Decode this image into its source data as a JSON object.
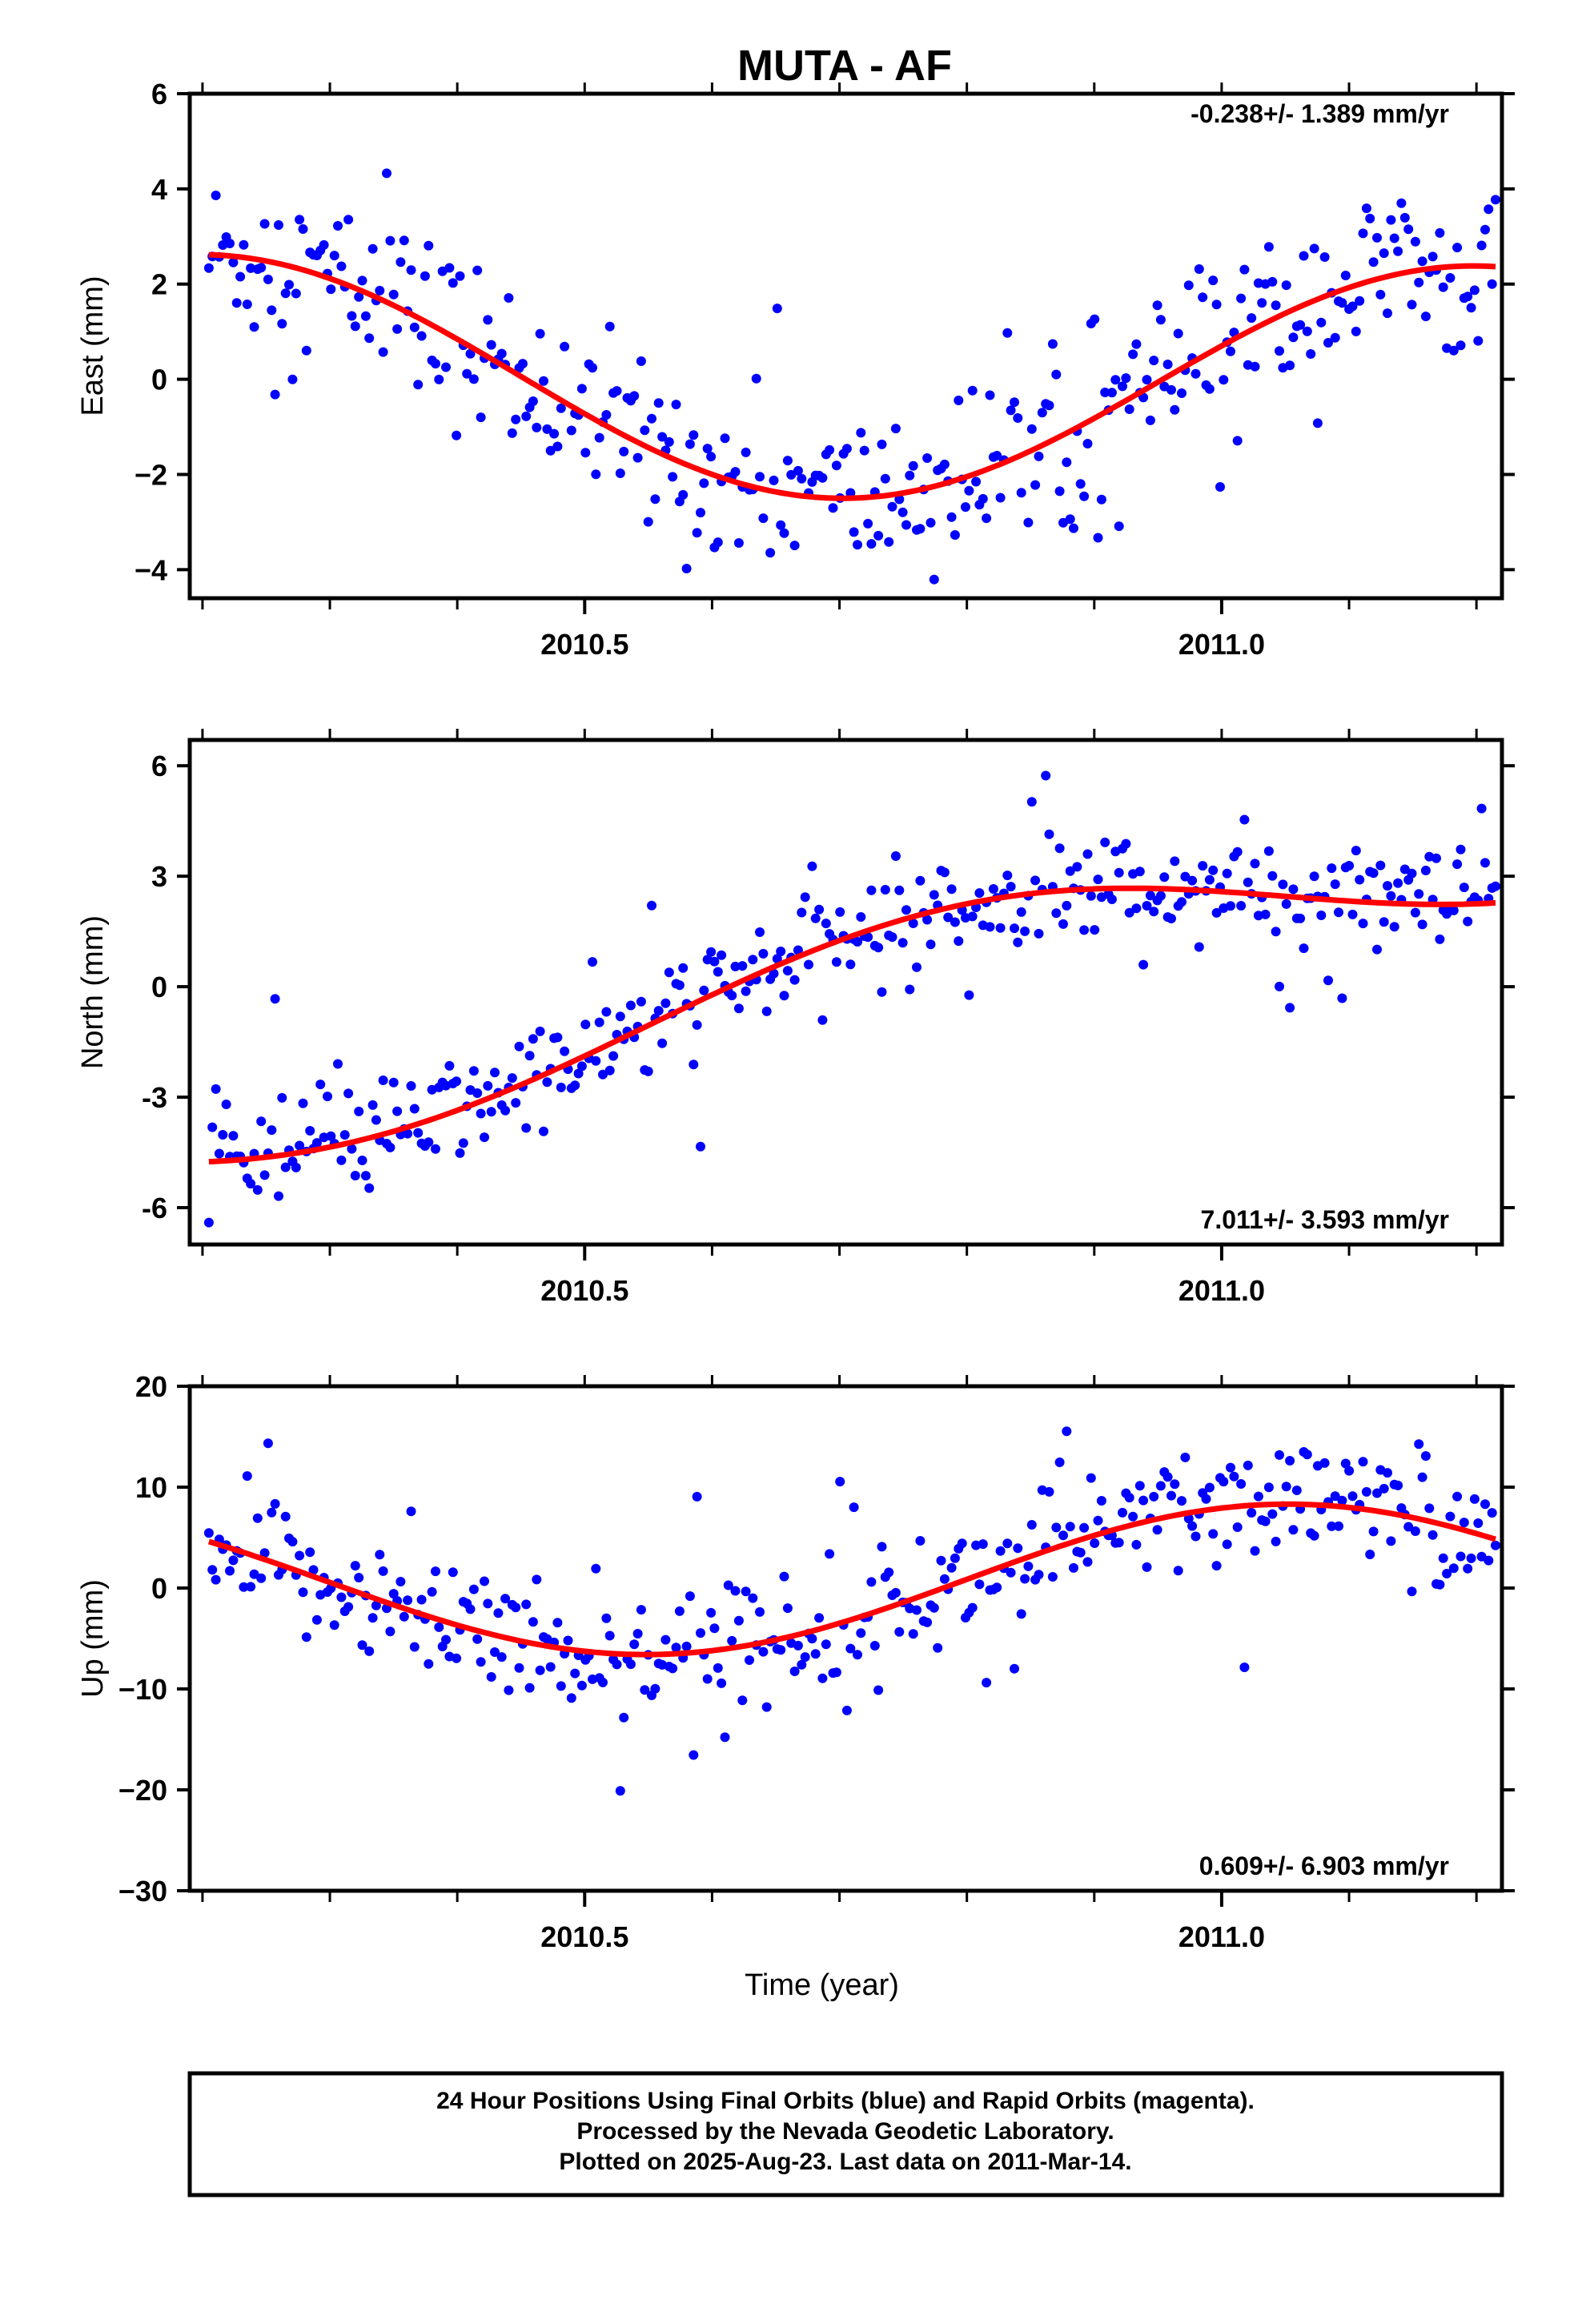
{
  "title": "MUTA - AF",
  "chart_data": [
    {
      "type": "scatter",
      "panel": "east",
      "ylabel": "East (mm)",
      "xlabel": "",
      "xlim": [
        2010.19,
        2011.22
      ],
      "ylim": [
        -4.6,
        6.0
      ],
      "yticks": [
        6,
        4,
        2,
        0,
        -2,
        -4
      ],
      "ytick_labels": [
        "6",
        "4",
        "2",
        "0",
        "−2",
        "−4"
      ],
      "xticks": [
        2010.5,
        2011.0
      ],
      "xtick_labels": [
        "2010.5",
        "2011.0"
      ],
      "rate_label": "-0.238+/- 1.389 mm/yr",
      "rate_position": "top-right",
      "grid": false,
      "trend": {
        "mean": 0.0,
        "amp": 2.5,
        "phase": 0.2,
        "slope": -0.238,
        "t0": 2010.7
      },
      "scatter_sigma": 0.9,
      "outlier_rate": 0.04
    },
    {
      "type": "scatter",
      "panel": "north",
      "ylabel": "North (mm)",
      "xlabel": "",
      "xlim": [
        2010.19,
        2011.22
      ],
      "ylim": [
        -7.0,
        6.7
      ],
      "yticks": [
        6,
        3,
        0,
        -3,
        -6
      ],
      "ytick_labels": [
        "6",
        "3",
        "0",
        "-3",
        "-6"
      ],
      "xticks": [
        2010.5,
        2011.0
      ],
      "xtick_labels": [
        "2010.5",
        "2011.0"
      ],
      "rate_label": "7.011+/- 3.593 mm/yr",
      "rate_position": "bottom-right",
      "grid": false,
      "trend": {
        "mean": 0.0,
        "amp": 1.55,
        "phase": 0.8,
        "slope": 7.011,
        "t0": 2010.7
      },
      "scatter_sigma": 0.75,
      "outlier_rate": 0.03
    },
    {
      "type": "scatter",
      "panel": "up",
      "ylabel": "Up (mm)",
      "xlabel": "Time (year)",
      "xlim": [
        2010.19,
        2011.22
      ],
      "ylim": [
        -30,
        20
      ],
      "yticks": [
        20,
        10,
        0,
        -10,
        -20,
        -30
      ],
      "ytick_labels": [
        "20",
        "10",
        "0",
        "−10",
        "−20",
        "−30"
      ],
      "xticks": [
        2010.5,
        2011.0
      ],
      "xtick_labels": [
        "2010.5",
        "2011.0"
      ],
      "rate_label": "0.609+/- 6.903 mm/yr",
      "rate_position": "bottom-right",
      "grid": false,
      "trend": {
        "mean": 0.8,
        "amp": 7.3,
        "phase": 0.05,
        "slope": 0.609,
        "t0": 2010.7
      },
      "scatter_sigma": 3.0,
      "outlier_rate": 0.05
    }
  ],
  "series": {
    "points_color": "#0000ff",
    "trend_color": "#ff0000"
  },
  "footer": {
    "line1": "24 Hour Positions Using Final Orbits (blue) and Rapid Orbits (magenta).",
    "line2": "Processed by the Nevada Geodetic Laboratory.",
    "line3": "Plotted on 2025-Aug-23. Last data on 2011-Mar-14."
  }
}
